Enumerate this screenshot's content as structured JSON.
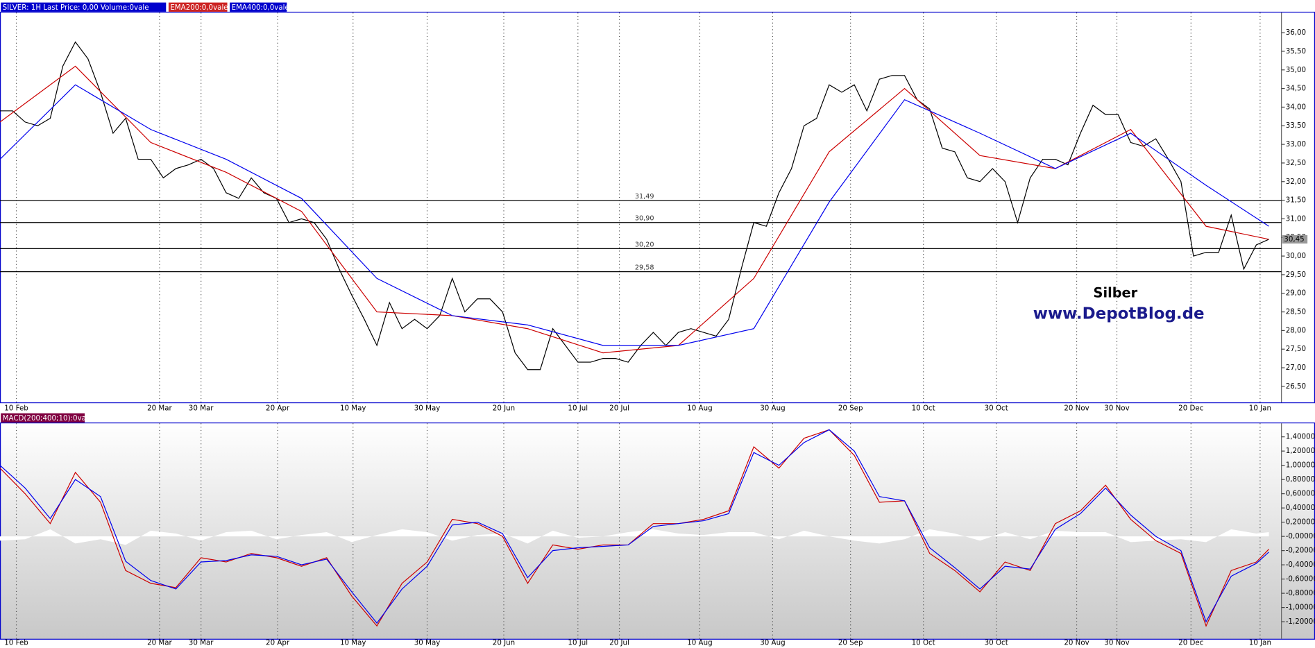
{
  "chart_data": [
    {
      "type": "line",
      "xlim": [
        0,
        102
      ],
      "ylim": [
        26.07,
        36.54
      ],
      "xticks": [
        {
          "value": 1.3,
          "label": "10 Feb"
        },
        {
          "value": 12.7,
          "label": "20 Mar"
        },
        {
          "value": 16,
          "label": "30 Mar"
        },
        {
          "value": 22.1,
          "label": "20 Apr"
        },
        {
          "value": 28.1,
          "label": "10 May"
        },
        {
          "value": 34,
          "label": "30 May"
        },
        {
          "value": 40.1,
          "label": "20 Jun"
        },
        {
          "value": 46,
          "label": "10 Jul"
        },
        {
          "value": 49.3,
          "label": "20 Jul"
        },
        {
          "value": 55.7,
          "label": "10 Aug"
        },
        {
          "value": 61.5,
          "label": "30 Aug"
        },
        {
          "value": 67.7,
          "label": "20 Sep"
        },
        {
          "value": 73.5,
          "label": "10 Oct"
        },
        {
          "value": 79.3,
          "label": "30 Oct"
        },
        {
          "value": 85.7,
          "label": "20 Nov"
        },
        {
          "value": 88.9,
          "label": "30 Nov"
        },
        {
          "value": 94.8,
          "label": "20 Dec"
        },
        {
          "value": 100.3,
          "label": "10 Jan"
        }
      ],
      "yticks": [
        {
          "value": 26.5,
          "label": "26,50"
        },
        {
          "value": 27,
          "label": "27,00"
        },
        {
          "value": 27.5,
          "label": "27,50"
        },
        {
          "value": 28,
          "label": "28,00"
        },
        {
          "value": 28.5,
          "label": "28,50"
        },
        {
          "value": 29,
          "label": "29,00"
        },
        {
          "value": 29.5,
          "label": "29,50"
        },
        {
          "value": 30,
          "label": "30,00"
        },
        {
          "value": 30.5,
          "label": "30,50"
        },
        {
          "value": 31,
          "label": "31,00"
        },
        {
          "value": 31.5,
          "label": "31,50"
        },
        {
          "value": 32,
          "label": "32,00"
        },
        {
          "value": 32.5,
          "label": "32,50"
        },
        {
          "value": 33,
          "label": "33,00"
        },
        {
          "value": 33.5,
          "label": "33,50"
        },
        {
          "value": 34,
          "label": "34,00"
        },
        {
          "value": 34.5,
          "label": "34,50"
        },
        {
          "value": 35,
          "label": "35,00"
        },
        {
          "value": 35.5,
          "label": "35,50"
        },
        {
          "value": 36,
          "label": "36,00"
        }
      ],
      "grid": true,
      "series": [
        {
          "name": "SILVER: 1H Last Price: 0,00 Volume:0vale",
          "color": "#000000",
          "x": [
            0,
            1,
            2,
            3,
            4,
            5,
            6,
            7,
            8,
            9,
            10,
            11,
            12,
            13,
            14,
            15,
            16,
            17,
            18,
            19,
            20,
            21,
            22,
            23,
            24,
            25,
            26,
            27,
            28,
            29,
            30,
            31,
            32,
            33,
            34,
            35,
            36,
            37,
            38,
            39,
            40,
            41,
            42,
            43,
            44,
            45,
            46,
            47,
            48,
            49,
            50,
            51,
            52,
            53,
            54,
            55,
            56,
            57,
            58,
            59,
            60,
            61,
            62,
            63,
            64,
            65,
            66,
            67,
            68,
            69,
            70,
            71,
            72,
            73,
            74,
            75,
            76,
            77,
            78,
            79,
            80,
            81,
            82,
            83,
            84,
            85,
            86,
            87,
            88,
            89,
            90,
            91,
            92,
            93,
            94,
            95,
            96,
            97,
            98,
            99,
            100,
            101
          ],
          "values": [
            33.9,
            33.9,
            33.6,
            33.5,
            33.7,
            35.1,
            35.75,
            35.3,
            34.4,
            33.3,
            33.7,
            32.6,
            32.6,
            32.1,
            32.35,
            32.45,
            32.6,
            32.35,
            31.7,
            31.55,
            32.1,
            31.7,
            31.55,
            30.9,
            31.0,
            30.9,
            30.45,
            29.65,
            28.95,
            28.3,
            27.6,
            28.75,
            28.05,
            28.3,
            28.05,
            28.4,
            29.4,
            28.5,
            28.85,
            28.85,
            28.5,
            27.4,
            26.95,
            26.95,
            28.05,
            27.6,
            27.15,
            27.15,
            27.25,
            27.25,
            27.15,
            27.6,
            27.95,
            27.6,
            27.95,
            28.05,
            27.95,
            27.85,
            28.3,
            29.65,
            30.9,
            30.8,
            31.7,
            32.35,
            33.5,
            33.7,
            34.6,
            34.4,
            34.6,
            33.9,
            34.75,
            34.85,
            34.85,
            34.2,
            33.95,
            32.9,
            32.8,
            32.1,
            32.0,
            32.35,
            32.0,
            30.9,
            32.1,
            32.6,
            32.6,
            32.45,
            33.3,
            34.05,
            33.8,
            33.8,
            33.05,
            32.95,
            33.15,
            32.6,
            32.0,
            30.0,
            30.1,
            30.1,
            31.1,
            29.65,
            30.3,
            30.45
          ]
        },
        {
          "name": "EMA200:0,0vale",
          "color": "#cc0000",
          "x": [
            0,
            6,
            12,
            18,
            24,
            30,
            36,
            42,
            48,
            54,
            60,
            66,
            72,
            78,
            84,
            90,
            96,
            101
          ],
          "values": [
            33.6,
            35.1,
            33.05,
            32.25,
            31.2,
            28.5,
            28.4,
            28.05,
            27.4,
            27.6,
            29.4,
            32.8,
            34.5,
            32.7,
            32.35,
            33.4,
            30.8,
            30.45
          ]
        },
        {
          "name": "EMA400:0,0vale",
          "color": "#0000ee",
          "x": [
            0,
            6,
            12,
            18,
            24,
            30,
            36,
            42,
            48,
            54,
            60,
            66,
            72,
            78,
            84,
            90,
            96,
            101
          ],
          "values": [
            32.6,
            34.6,
            33.4,
            32.6,
            31.55,
            29.4,
            28.4,
            28.15,
            27.6,
            27.6,
            28.05,
            31.45,
            34.2,
            33.3,
            32.35,
            33.3,
            31.9,
            30.8
          ]
        }
      ],
      "levels": [
        {
          "value": 31.49,
          "label": "31,49"
        },
        {
          "value": 30.9,
          "label": "30,90"
        },
        {
          "value": 30.2,
          "label": "30,20"
        },
        {
          "value": 29.58,
          "label": "29,58"
        }
      ],
      "last_price": {
        "value": 30.45,
        "label": "30,45"
      },
      "annotations": [
        "Silber",
        "www.DepotBlog.de"
      ]
    },
    {
      "type": "line",
      "title": "MACD(200;400;10):0vale",
      "xlim": [
        0,
        102
      ],
      "ylim": [
        -1.44,
        1.59
      ],
      "xticks": [
        {
          "value": 1.3,
          "label": "10 Feb"
        },
        {
          "value": 12.7,
          "label": "20 Mar"
        },
        {
          "value": 16,
          "label": "30 Mar"
        },
        {
          "value": 22.1,
          "label": "20 Apr"
        },
        {
          "value": 28.1,
          "label": "10 May"
        },
        {
          "value": 34,
          "label": "30 May"
        },
        {
          "value": 40.1,
          "label": "20 Jun"
        },
        {
          "value": 46,
          "label": "10 Jul"
        },
        {
          "value": 49.3,
          "label": "20 Jul"
        },
        {
          "value": 55.7,
          "label": "10 Aug"
        },
        {
          "value": 61.5,
          "label": "30 Aug"
        },
        {
          "value": 67.7,
          "label": "20 Sep"
        },
        {
          "value": 73.5,
          "label": "10 Oct"
        },
        {
          "value": 79.3,
          "label": "30 Oct"
        },
        {
          "value": 85.7,
          "label": "20 Nov"
        },
        {
          "value": 88.9,
          "label": "30 Nov"
        },
        {
          "value": 94.8,
          "label": "20 Dec"
        },
        {
          "value": 100.3,
          "label": "10 Jan"
        }
      ],
      "yticks": [
        {
          "value": -1.2,
          "label": "-1,20000"
        },
        {
          "value": -1,
          "label": "-1,00000"
        },
        {
          "value": -0.8,
          "label": "-0,80000"
        },
        {
          "value": -0.6,
          "label": "-0,60000"
        },
        {
          "value": -0.4,
          "label": "-0,40000"
        },
        {
          "value": -0.2,
          "label": "-0,20000"
        },
        {
          "value": 0,
          "label": "-0,00000"
        },
        {
          "value": 0.2,
          "label": "0,20000"
        },
        {
          "value": 0.4,
          "label": "0,40000"
        },
        {
          "value": 0.6,
          "label": "0,60000"
        },
        {
          "value": 0.8,
          "label": "0,80000"
        },
        {
          "value": 1,
          "label": "1,00000"
        },
        {
          "value": 1.2,
          "label": "1,20000"
        },
        {
          "value": 1.4,
          "label": "1,40000"
        }
      ],
      "grid": true,
      "series": [
        {
          "style": "area",
          "color": "#ffffff",
          "x": [
            0,
            2,
            4,
            6,
            8,
            10,
            12,
            14,
            16,
            18,
            20,
            22,
            24,
            26,
            28,
            30,
            32,
            34,
            36,
            38,
            40,
            42,
            44,
            46,
            48,
            50,
            52,
            54,
            56,
            58,
            60,
            62,
            64,
            66,
            68,
            70,
            72,
            74,
            76,
            78,
            80,
            82,
            84,
            86,
            88,
            90,
            92,
            94,
            96,
            98,
            100,
            101
          ],
          "values": [
            -0.06,
            -0.04,
            0.1,
            -0.1,
            -0.04,
            -0.12,
            0.08,
            0.04,
            -0.06,
            0.06,
            0.08,
            -0.04,
            0.02,
            0.06,
            -0.08,
            0.02,
            0.1,
            0.06,
            -0.06,
            0.02,
            0.04,
            -0.1,
            0.08,
            -0.02,
            0.0,
            0.06,
            0.1,
            0.04,
            0.02,
            0.06,
            0.06,
            -0.04,
            0.08,
            0.0,
            -0.06,
            -0.1,
            -0.04,
            0.1,
            0.04,
            -0.06,
            0.06,
            -0.04,
            0.08,
            0.06,
            0.06,
            -0.08,
            -0.06,
            -0.04,
            -0.08,
            0.1,
            0.04,
            0.06
          ]
        },
        {
          "style": "line",
          "color": "#cc0000",
          "x": [
            0,
            2,
            4,
            6,
            8,
            10,
            12,
            14,
            16,
            18,
            20,
            22,
            24,
            26,
            28,
            30,
            32,
            34,
            36,
            38,
            40,
            42,
            44,
            46,
            48,
            50,
            52,
            54,
            56,
            58,
            60,
            62,
            64,
            66,
            68,
            70,
            72,
            74,
            76,
            78,
            80,
            82,
            84,
            86,
            88,
            90,
            92,
            94,
            96,
            98,
            100,
            101
          ],
          "values": [
            0.96,
            0.6,
            0.18,
            0.9,
            0.48,
            -0.48,
            -0.66,
            -0.72,
            -0.3,
            -0.36,
            -0.24,
            -0.3,
            -0.42,
            -0.3,
            -0.84,
            -1.26,
            -0.66,
            -0.36,
            0.24,
            0.18,
            0.0,
            -0.66,
            -0.12,
            -0.18,
            -0.12,
            -0.12,
            0.18,
            0.18,
            0.24,
            0.36,
            1.26,
            0.96,
            1.38,
            1.5,
            1.14,
            0.48,
            0.5,
            -0.24,
            -0.48,
            -0.78,
            -0.36,
            -0.48,
            0.18,
            0.36,
            0.72,
            0.24,
            -0.06,
            -0.24,
            -1.26,
            -0.48,
            -0.36,
            -0.18
          ]
        },
        {
          "style": "line",
          "color": "#0000ee",
          "x": [
            0,
            2,
            4,
            6,
            8,
            10,
            12,
            14,
            16,
            18,
            20,
            22,
            24,
            26,
            28,
            30,
            32,
            34,
            36,
            38,
            40,
            42,
            44,
            46,
            48,
            50,
            52,
            54,
            56,
            58,
            60,
            62,
            64,
            66,
            68,
            70,
            72,
            74,
            76,
            78,
            80,
            82,
            84,
            86,
            88,
            90,
            92,
            94,
            96,
            98,
            100,
            101
          ],
          "values": [
            1.0,
            0.68,
            0.25,
            0.8,
            0.56,
            -0.35,
            -0.62,
            -0.74,
            -0.36,
            -0.34,
            -0.26,
            -0.28,
            -0.4,
            -0.32,
            -0.78,
            -1.22,
            -0.74,
            -0.42,
            0.16,
            0.2,
            0.04,
            -0.58,
            -0.2,
            -0.16,
            -0.14,
            -0.12,
            0.14,
            0.18,
            0.22,
            0.32,
            1.18,
            1.0,
            1.32,
            1.5,
            1.2,
            0.56,
            0.5,
            -0.16,
            -0.44,
            -0.74,
            -0.42,
            -0.46,
            0.1,
            0.32,
            0.68,
            0.3,
            0.0,
            -0.2,
            -1.2,
            -0.56,
            -0.38,
            -0.22
          ]
        }
      ]
    }
  ]
}
